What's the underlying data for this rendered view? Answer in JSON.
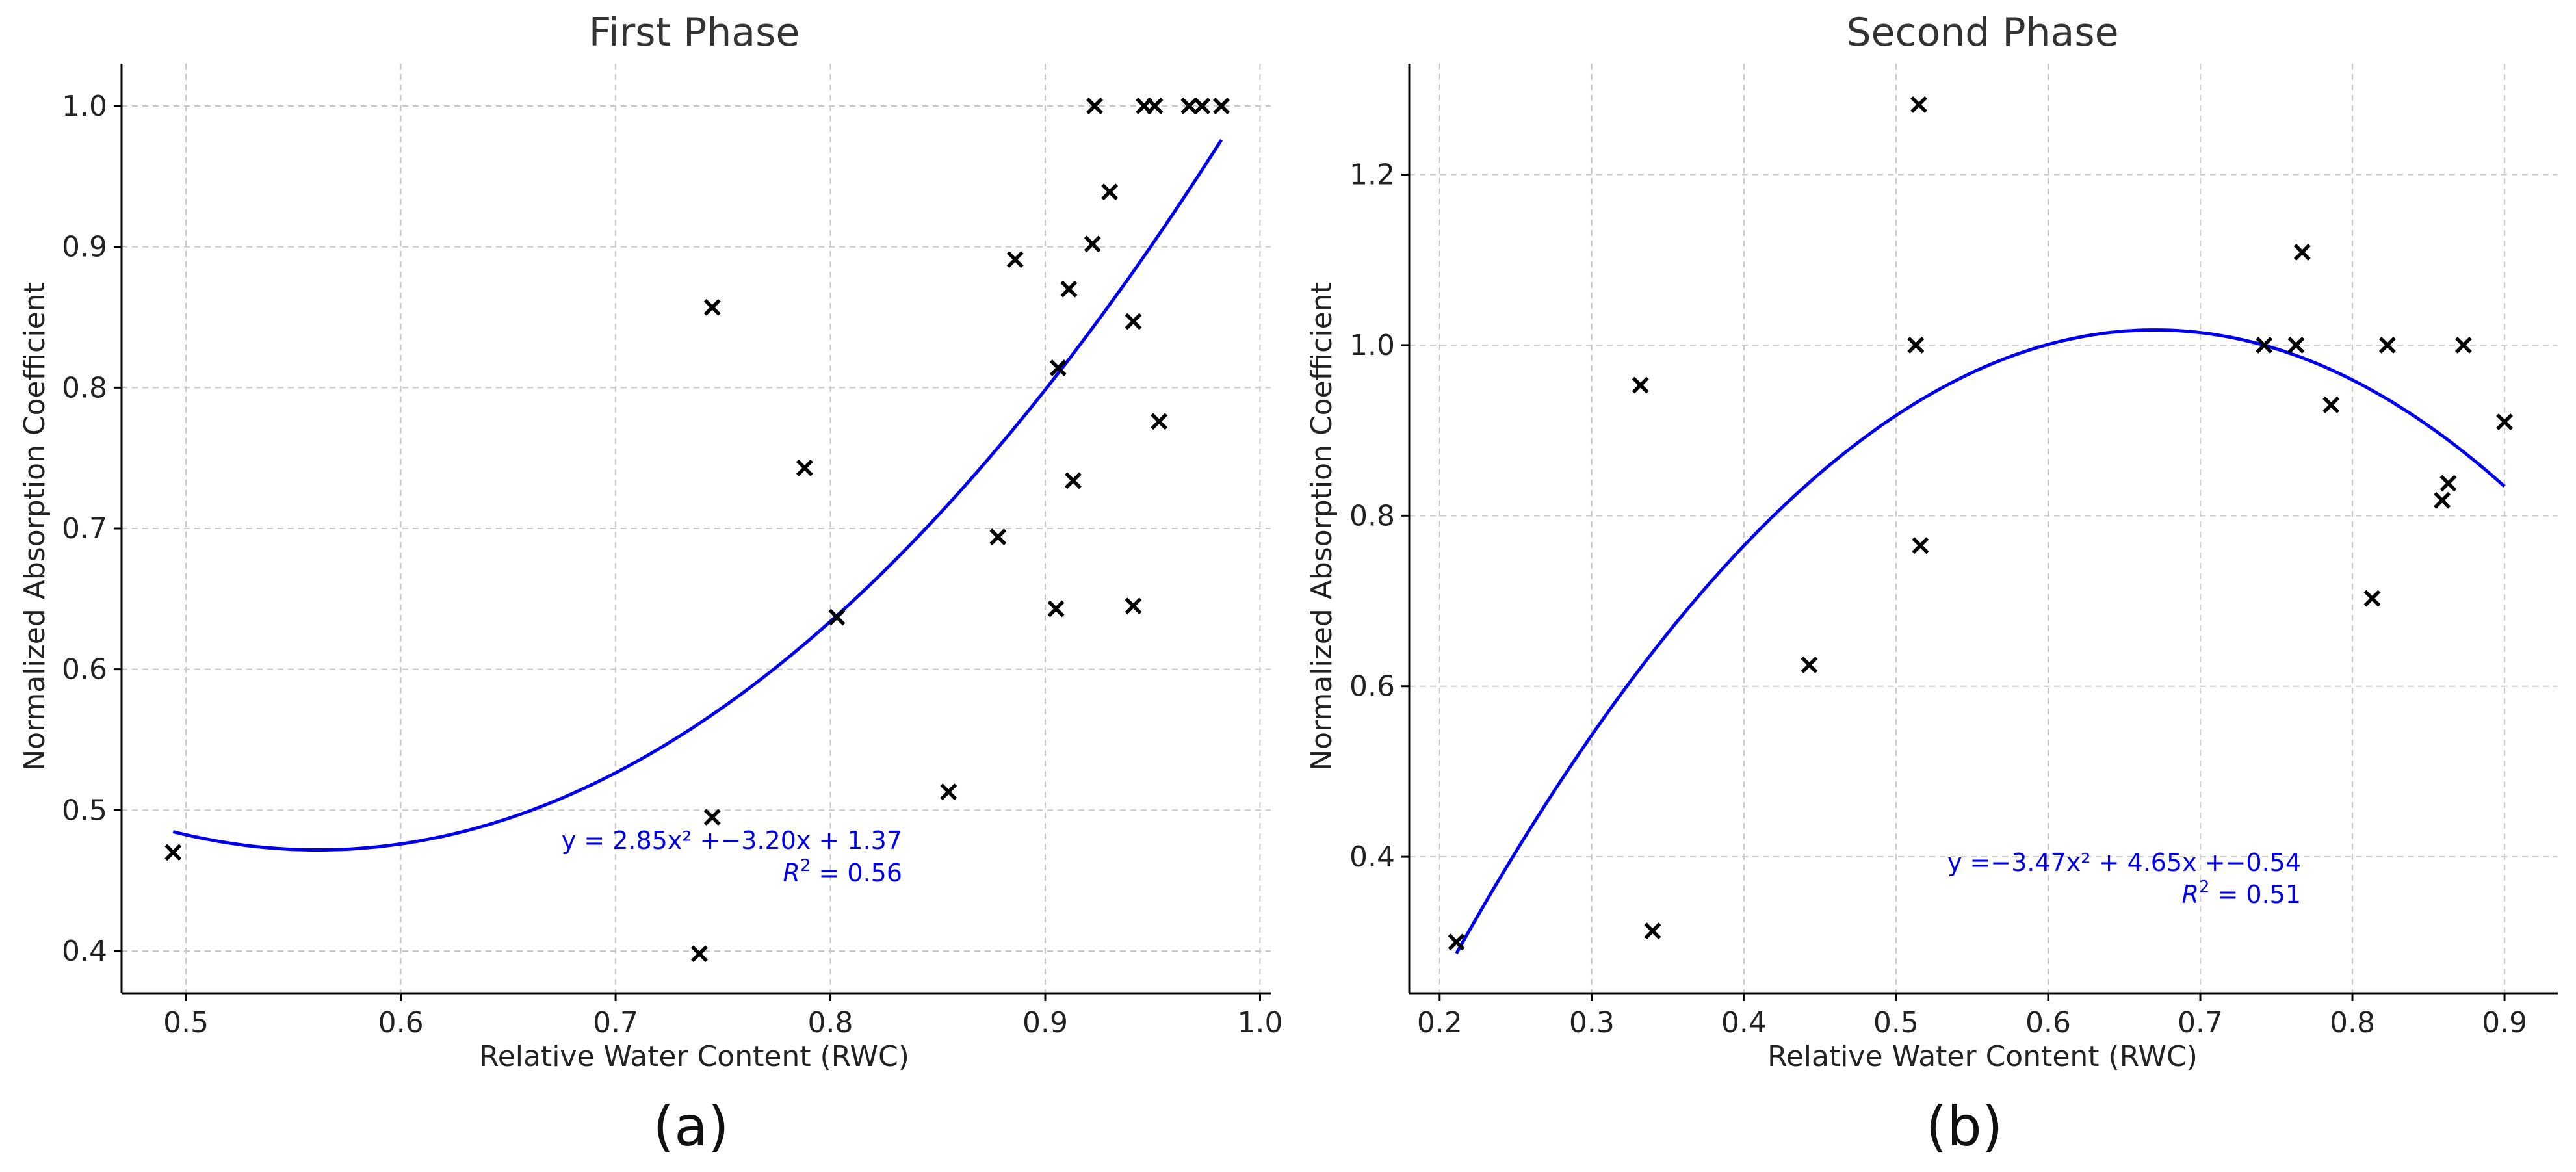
{
  "colors": {
    "fit": "#0000ee",
    "points": "#000000",
    "grid": "#c8c8c8"
  },
  "chart_data": [
    {
      "type": "scatter",
      "title": "First Phase",
      "panel_label": "(a)",
      "xlabel": "Relative Water Content (RWC)",
      "ylabel": "Normalized Absorption Coefficient",
      "xlim": [
        0.47,
        1.005
      ],
      "ylim": [
        0.37,
        1.03
      ],
      "xticks": [
        0.5,
        0.6,
        0.7,
        0.8,
        0.9,
        1.0
      ],
      "xtick_labels": [
        "0.5",
        "0.6",
        "0.7",
        "0.8",
        "0.9",
        "1.0"
      ],
      "yticks": [
        0.4,
        0.5,
        0.6,
        0.7,
        0.8,
        0.9,
        1.0
      ],
      "ytick_labels": [
        "0.4",
        "0.5",
        "0.6",
        "0.7",
        "0.8",
        "0.9",
        "1.0"
      ],
      "marker": "x",
      "x": [
        0.494,
        0.739,
        0.745,
        0.745,
        0.788,
        0.803,
        0.855,
        0.878,
        0.886,
        0.905,
        0.906,
        0.911,
        0.913,
        0.922,
        0.923,
        0.93,
        0.941,
        0.941,
        0.946,
        0.951,
        0.953,
        0.967,
        0.973,
        0.982
      ],
      "y": [
        0.47,
        0.398,
        0.857,
        0.495,
        0.743,
        0.637,
        0.513,
        0.694,
        0.891,
        0.643,
        0.814,
        0.87,
        0.734,
        0.902,
        1.0,
        0.939,
        0.847,
        0.645,
        1.0,
        1.0,
        0.776,
        1.0,
        1.0,
        1.0
      ],
      "fit": {
        "a": 2.85,
        "b": -3.2,
        "c": 1.37,
        "x_range": [
          0.494,
          0.982
        ]
      },
      "annotation": {
        "equation": "y = 2.85x² +−3.20x + 1.37",
        "r2_label": "R",
        "r2_sup": "2",
        "r2_value": " = 0.56"
      }
    },
    {
      "type": "scatter",
      "title": "Second Phase",
      "panel_label": "(b)",
      "xlabel": "Relative Water Content (RWC)",
      "ylabel": "Normalized Absorption Coefficient",
      "xlim": [
        0.18,
        0.935
      ],
      "ylim": [
        0.24,
        1.33
      ],
      "xticks": [
        0.2,
        0.3,
        0.4,
        0.5,
        0.6,
        0.7,
        0.8,
        0.9
      ],
      "xtick_labels": [
        "0.2",
        "0.3",
        "0.4",
        "0.5",
        "0.6",
        "0.7",
        "0.8",
        "0.9"
      ],
      "yticks": [
        0.4,
        0.6,
        0.8,
        1.0,
        1.2
      ],
      "ytick_labels": [
        "0.4",
        "0.6",
        "0.8",
        "1.0",
        "1.2"
      ],
      "marker": "x",
      "x": [
        0.211,
        0.332,
        0.34,
        0.443,
        0.513,
        0.515,
        0.516,
        0.742,
        0.763,
        0.767,
        0.786,
        0.813,
        0.823,
        0.859,
        0.863,
        0.873,
        0.9
      ],
      "y": [
        0.3,
        0.953,
        0.313,
        0.625,
        1.0,
        1.282,
        0.765,
        1.0,
        1.0,
        1.109,
        0.93,
        0.703,
        1.0,
        0.818,
        0.838,
        1.0,
        0.91
      ],
      "fit": {
        "a": -3.47,
        "b": 4.65,
        "c": -0.54,
        "x_range": [
          0.211,
          0.9
        ]
      },
      "annotation": {
        "equation": "y =−3.47x² + 4.65x +−0.54",
        "r2_label": "R",
        "r2_sup": "2",
        "r2_value": " = 0.51"
      }
    }
  ]
}
